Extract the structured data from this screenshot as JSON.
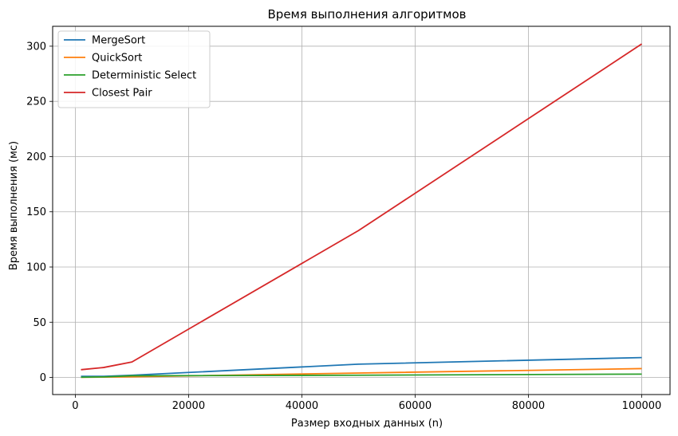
{
  "chart_data": {
    "type": "line",
    "title": "Время выполнения алгоритмов",
    "xlabel": "Размер входных данных (n)",
    "ylabel": "Время выполнения (мс)",
    "xlim": [
      -4000,
      105000
    ],
    "ylim": [
      -15.5,
      318
    ],
    "x_ticks": [
      0,
      20000,
      40000,
      60000,
      80000,
      100000
    ],
    "y_ticks": [
      0,
      50,
      100,
      150,
      200,
      250,
      300
    ],
    "grid": true,
    "legend_position": "top-left",
    "x": [
      1000,
      5000,
      10000,
      50000,
      100000
    ],
    "series": [
      {
        "name": "MergeSort",
        "color": "#1f77b4",
        "values": [
          1.0,
          1.0,
          2.0,
          12.0,
          18.0
        ]
      },
      {
        "name": "QuickSort",
        "color": "#ff7f0e",
        "values": [
          0.1,
          0.3,
          0.6,
          4.0,
          8.0
        ]
      },
      {
        "name": "Deterministic Select",
        "color": "#2ca02c",
        "values": [
          0.2,
          0.5,
          1.5,
          2.0,
          3.0
        ]
      },
      {
        "name": "Closest Pair",
        "color": "#d62728",
        "values": [
          7.0,
          9.0,
          14.0,
          133.0,
          302.0
        ]
      }
    ]
  }
}
